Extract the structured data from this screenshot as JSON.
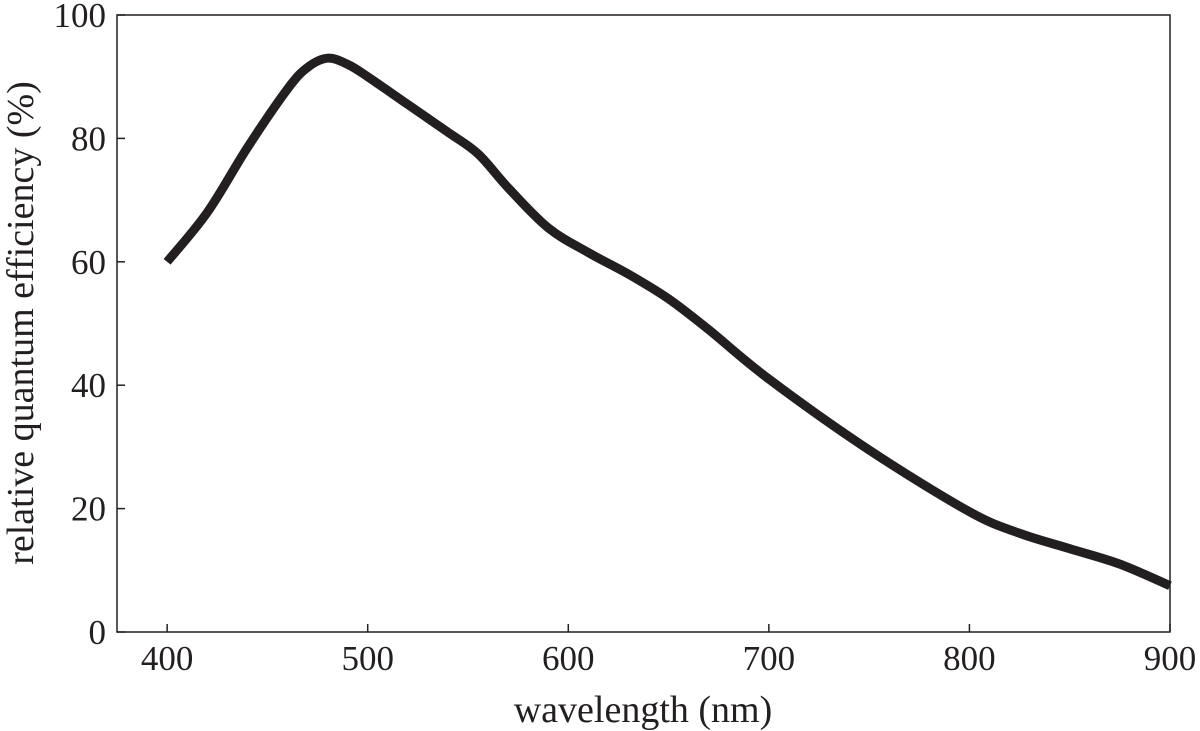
{
  "chart_data": {
    "type": "line",
    "title": "",
    "xlabel": "wavelength (nm)",
    "ylabel": "relative quantum efficiency (%)",
    "xlim": [
      375,
      900
    ],
    "ylim": [
      0,
      100
    ],
    "xticks": [
      400,
      500,
      600,
      700,
      800,
      900
    ],
    "yticks": [
      0,
      20,
      40,
      60,
      80,
      100
    ],
    "xtick_labels": [
      "400",
      "500",
      "600",
      "700",
      "800",
      "900"
    ],
    "ytick_labels": [
      "0",
      "20",
      "40",
      "60",
      "80",
      "100"
    ],
    "grid": false,
    "legend": "none",
    "line_color": "#231f20",
    "series": [
      {
        "name": "relative quantum efficiency",
        "x": [
          400,
          420,
          440,
          460,
          470,
          480,
          490,
          500,
          520,
          540,
          555,
          570,
          590,
          610,
          630,
          650,
          670,
          700,
          750,
          800,
          825,
          850,
          875,
          900
        ],
        "y": [
          60.0,
          68.0,
          78.5,
          88.0,
          91.5,
          93.0,
          92.0,
          90.0,
          85.5,
          81.0,
          77.5,
          72.0,
          65.5,
          61.5,
          58.0,
          54.0,
          49.0,
          41.0,
          29.5,
          19.5,
          16.0,
          13.5,
          11.0,
          7.5
        ]
      }
    ]
  }
}
